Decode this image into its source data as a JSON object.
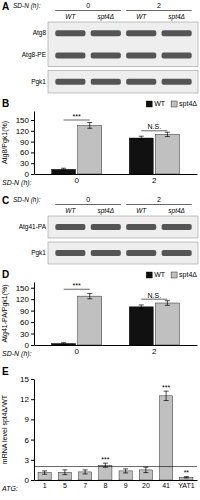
{
  "chart_data": [
    {
      "type": "blot",
      "title": "A",
      "xlabel": "SD-N (h):",
      "groups": [
        "0",
        "2"
      ],
      "categories": [
        "WT",
        "spt4Δ",
        "WT",
        "spt4Δ"
      ],
      "boxes": [
        [
          "Atg8",
          "Atg8-PE"
        ],
        [
          "Pgk1"
        ]
      ]
    },
    {
      "type": "bar",
      "title": "B",
      "ylabel": "Atg8/Pgk1(%)",
      "xlabel": "SD-N (h):",
      "categories": [
        "0",
        "2"
      ],
      "series": [
        {
          "name": "WT",
          "color": "#111111",
          "values": [
            13,
            100
          ],
          "errors": [
            3,
            5
          ]
        },
        {
          "name": "spt4Δ",
          "color": "#c0c0c0",
          "values": [
            135,
            110
          ],
          "errors": [
            8,
            6
          ]
        }
      ],
      "ylim": [
        0,
        175
      ],
      "yticks": [
        0,
        30,
        60,
        90,
        120,
        150
      ],
      "legend": "upper right",
      "annotations": [
        {
          "text": "***",
          "category": "0",
          "y": 150
        },
        {
          "text": "N.S.",
          "category": "2",
          "y": 120
        }
      ]
    },
    {
      "type": "blot",
      "title": "C",
      "xlabel": "SD-N (h):",
      "groups": [
        "0",
        "2"
      ],
      "categories": [
        "WT",
        "spt4Δ",
        "WT",
        "spt4Δ"
      ],
      "boxes": [
        [
          "Atg41-PA"
        ],
        [
          "Pgk1"
        ]
      ]
    },
    {
      "type": "bar",
      "title": "D",
      "ylabel": "Atg41-PA/Pgk1(%)",
      "xlabel": "SD-N (h):",
      "categories": [
        "0",
        "2"
      ],
      "series": [
        {
          "name": "WT",
          "color": "#111111",
          "values": [
            4,
            100
          ],
          "errors": [
            2,
            5
          ]
        },
        {
          "name": "spt4Δ",
          "color": "#c0c0c0",
          "values": [
            128,
            110
          ],
          "errors": [
            7,
            6
          ]
        }
      ],
      "ylim": [
        0,
        165
      ],
      "yticks": [
        0,
        30,
        60,
        90,
        120,
        150
      ],
      "legend": "upper right",
      "annotations": [
        {
          "text": "***",
          "category": "0",
          "y": 146
        },
        {
          "text": "N.S.",
          "category": "2",
          "y": 120
        }
      ]
    },
    {
      "type": "bar",
      "title": "E",
      "ylabel": "mRNA level spt4Δ/WT",
      "xlabel": "ATG:",
      "categories": [
        "1",
        "5",
        "7",
        "8",
        "9",
        "20",
        "41",
        "YAT1"
      ],
      "values": [
        1.1,
        1.15,
        1.2,
        2.2,
        1.35,
        1.5,
        12.5,
        0.4
      ],
      "errors": [
        0.25,
        0.35,
        0.3,
        0.3,
        0.3,
        0.4,
        0.7,
        0.1
      ],
      "color": "#c0c0c0",
      "significance": [
        null,
        null,
        null,
        "***",
        null,
        null,
        "***",
        "**"
      ],
      "reference_line": 2,
      "ylim": [
        0,
        15
      ],
      "yticks": [
        0,
        3,
        6,
        9,
        12,
        15
      ]
    }
  ]
}
